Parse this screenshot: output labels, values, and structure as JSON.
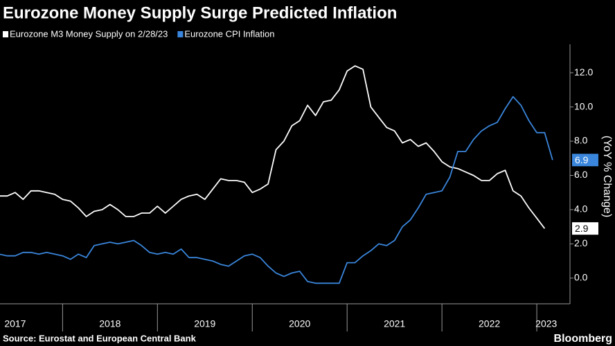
{
  "chart_data": {
    "type": "line",
    "title": "Eurozone Money Supply Surge Predicted Inflation",
    "y_axis_label": "(YoY % Change)",
    "source": "Source: Eurostat and European Central Bank",
    "brand": "Bloomberg",
    "x": [
      2017.333,
      2017.417,
      2017.5,
      2017.583,
      2017.667,
      2017.75,
      2017.833,
      2017.917,
      2018,
      2018.083,
      2018.167,
      2018.25,
      2018.333,
      2018.417,
      2018.5,
      2018.583,
      2018.667,
      2018.75,
      2018.833,
      2018.917,
      2019,
      2019.083,
      2019.167,
      2019.25,
      2019.333,
      2019.417,
      2019.5,
      2019.583,
      2019.667,
      2019.75,
      2019.833,
      2019.917,
      2020,
      2020.083,
      2020.167,
      2020.25,
      2020.333,
      2020.417,
      2020.5,
      2020.583,
      2020.667,
      2020.75,
      2020.833,
      2020.917,
      2021,
      2021.083,
      2021.167,
      2021.25,
      2021.333,
      2021.417,
      2021.5,
      2021.583,
      2021.667,
      2021.75,
      2021.833,
      2021.917,
      2022,
      2022.083,
      2022.167,
      2022.25,
      2022.333,
      2022.417,
      2022.5,
      2022.583,
      2022.667,
      2022.75,
      2022.833,
      2022.917,
      2023,
      2023.083,
      2023.167
    ],
    "series": [
      {
        "name": "Eurozone M3 Money Supply on 2/28/23",
        "color": "#ffffff",
        "values": [
          4.8,
          4.8,
          5.0,
          4.6,
          5.1,
          5.1,
          5.0,
          4.9,
          4.6,
          4.5,
          4.1,
          3.6,
          3.9,
          4.0,
          4.3,
          4.0,
          3.6,
          3.6,
          3.8,
          3.8,
          4.2,
          3.8,
          4.2,
          4.6,
          4.8,
          4.9,
          4.6,
          5.2,
          5.8,
          5.7,
          5.7,
          5.6,
          5.0,
          5.2,
          5.5,
          7.5,
          8.0,
          8.9,
          9.2,
          10.1,
          9.5,
          10.3,
          10.4,
          11.0,
          12.1,
          12.4,
          12.2,
          10.0,
          9.4,
          8.8,
          8.6,
          7.9,
          8.1,
          7.7,
          7.9,
          7.4,
          6.8,
          6.5,
          6.4,
          6.2,
          6.0,
          5.7,
          5.7,
          6.1,
          6.3,
          5.1,
          4.8,
          4.1,
          3.5,
          2.9,
          null
        ]
      },
      {
        "name": "Eurozone CPI Inflation",
        "color": "#3a86dc",
        "values": [
          1.4,
          1.3,
          1.3,
          1.5,
          1.5,
          1.4,
          1.5,
          1.4,
          1.3,
          1.1,
          1.4,
          1.2,
          1.9,
          2.0,
          2.1,
          2.0,
          2.1,
          2.2,
          1.9,
          1.5,
          1.4,
          1.5,
          1.4,
          1.7,
          1.2,
          1.2,
          1.1,
          1.0,
          0.8,
          0.7,
          1.0,
          1.3,
          1.4,
          1.2,
          0.7,
          0.3,
          0.1,
          0.3,
          0.4,
          -0.2,
          -0.3,
          -0.3,
          -0.3,
          -0.3,
          0.9,
          0.9,
          1.3,
          1.6,
          2.0,
          1.9,
          2.2,
          3.0,
          3.4,
          4.1,
          4.9,
          5.0,
          5.1,
          5.9,
          7.4,
          7.4,
          8.1,
          8.6,
          8.9,
          9.1,
          9.9,
          10.6,
          10.1,
          9.2,
          8.5,
          8.5,
          6.9
        ]
      }
    ],
    "end_labels": [
      {
        "series": 0,
        "index": 69
      },
      {
        "series": 1,
        "index": 70
      }
    ],
    "xlim": [
      2017.34,
      2023.35
    ],
    "xticks": [
      {
        "value": 2017.5,
        "label": "2017"
      },
      {
        "value": 2018.5,
        "label": "2018"
      },
      {
        "value": 2019.5,
        "label": "2019"
      },
      {
        "value": 2020.5,
        "label": "2020"
      },
      {
        "value": 2021.5,
        "label": "2021"
      },
      {
        "value": 2022.5,
        "label": "2022"
      },
      {
        "value": 2023.1,
        "label": "2023"
      }
    ],
    "xdividers": [
      2018,
      2019,
      2020,
      2021,
      2022,
      2023
    ],
    "ylim": [
      -1.5,
      13.5
    ],
    "yticks": [
      {
        "value": 0,
        "label": "0.0"
      },
      {
        "value": 2,
        "label": "2.0"
      },
      {
        "value": 4,
        "label": "4.0"
      },
      {
        "value": 6,
        "label": "6.0"
      },
      {
        "value": 8,
        "label": "8.0"
      },
      {
        "value": 10,
        "label": "10.0"
      },
      {
        "value": 12,
        "label": "12.0"
      }
    ],
    "grid": false
  }
}
